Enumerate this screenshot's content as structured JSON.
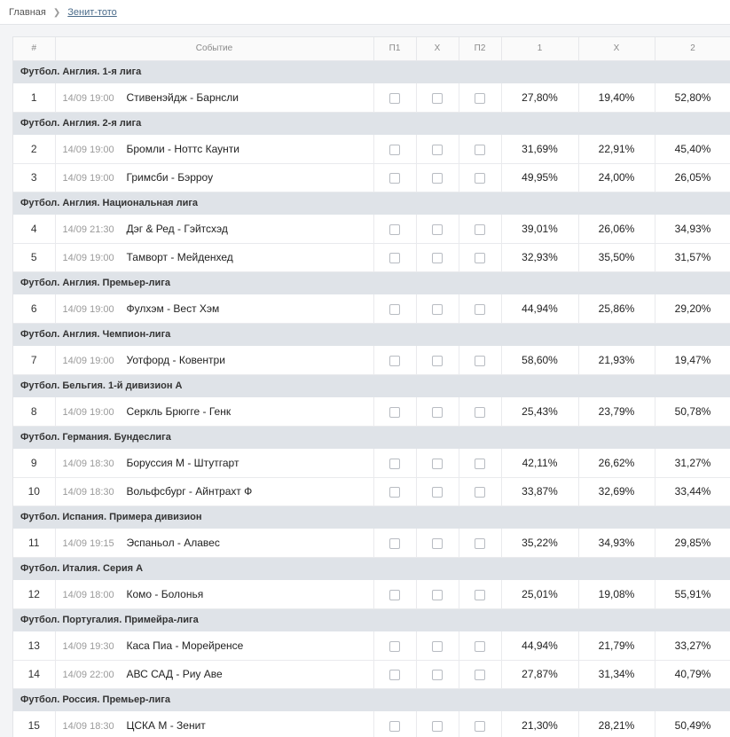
{
  "breadcrumb": {
    "home": "Главная",
    "current": "Зенит-тото"
  },
  "table": {
    "headers": [
      "#",
      "Событие",
      "П1",
      "Х",
      "П2",
      "1",
      "Х",
      "2"
    ],
    "rows": [
      {
        "kind": "group",
        "title": "Футбол. Англия. 1-я лига"
      },
      {
        "kind": "match",
        "num": "1",
        "time": "14/09 19:00",
        "match": "Стивенэйдж - Барнсли",
        "p1": "27,80%",
        "x": "19,40%",
        "p2": "52,80%"
      },
      {
        "kind": "group",
        "title": "Футбол. Англия. 2-я лига"
      },
      {
        "kind": "match",
        "num": "2",
        "time": "14/09 19:00",
        "match": "Бромли - Ноттс Каунти",
        "p1": "31,69%",
        "x": "22,91%",
        "p2": "45,40%"
      },
      {
        "kind": "match",
        "num": "3",
        "time": "14/09 19:00",
        "match": "Гримсби - Бэрроу",
        "p1": "49,95%",
        "x": "24,00%",
        "p2": "26,05%"
      },
      {
        "kind": "group",
        "title": "Футбол. Англия. Национальная лига"
      },
      {
        "kind": "match",
        "num": "4",
        "time": "14/09 21:30",
        "match": "Дэг & Ред - Гэйтсхэд",
        "p1": "39,01%",
        "x": "26,06%",
        "p2": "34,93%"
      },
      {
        "kind": "match",
        "num": "5",
        "time": "14/09 19:00",
        "match": "Тамворт - Мейденхед",
        "p1": "32,93%",
        "x": "35,50%",
        "p2": "31,57%"
      },
      {
        "kind": "group",
        "title": "Футбол. Англия. Премьер-лига"
      },
      {
        "kind": "match",
        "num": "6",
        "time": "14/09 19:00",
        "match": "Фулхэм - Вест Хэм",
        "p1": "44,94%",
        "x": "25,86%",
        "p2": "29,20%"
      },
      {
        "kind": "group",
        "title": "Футбол. Англия. Чемпион-лига"
      },
      {
        "kind": "match",
        "num": "7",
        "time": "14/09 19:00",
        "match": "Уотфорд - Ковентри",
        "p1": "58,60%",
        "x": "21,93%",
        "p2": "19,47%"
      },
      {
        "kind": "group",
        "title": "Футбол. Бельгия. 1-й дивизион А"
      },
      {
        "kind": "match",
        "num": "8",
        "time": "14/09 19:00",
        "match": "Серкль Брюгге - Генк",
        "p1": "25,43%",
        "x": "23,79%",
        "p2": "50,78%"
      },
      {
        "kind": "group",
        "title": "Футбол. Германия. Бундеслига"
      },
      {
        "kind": "match",
        "num": "9",
        "time": "14/09 18:30",
        "match": "Боруссия М - Штутгарт",
        "p1": "42,11%",
        "x": "26,62%",
        "p2": "31,27%"
      },
      {
        "kind": "match",
        "num": "10",
        "time": "14/09 18:30",
        "match": "Вольфсбург - Айнтрахт Ф",
        "p1": "33,87%",
        "x": "32,69%",
        "p2": "33,44%"
      },
      {
        "kind": "group",
        "title": "Футбол. Испания. Примера дивизион"
      },
      {
        "kind": "match",
        "num": "11",
        "time": "14/09 19:15",
        "match": "Эспаньол - Алавес",
        "p1": "35,22%",
        "x": "34,93%",
        "p2": "29,85%"
      },
      {
        "kind": "group",
        "title": "Футбол. Италия. Серия А"
      },
      {
        "kind": "match",
        "num": "12",
        "time": "14/09 18:00",
        "match": "Комо - Болонья",
        "p1": "25,01%",
        "x": "19,08%",
        "p2": "55,91%"
      },
      {
        "kind": "group",
        "title": "Футбол. Португалия. Примейра-лига"
      },
      {
        "kind": "match",
        "num": "13",
        "time": "14/09 19:30",
        "match": "Каса Пиа - Морейренсе",
        "p1": "44,94%",
        "x": "21,79%",
        "p2": "33,27%"
      },
      {
        "kind": "match",
        "num": "14",
        "time": "14/09 22:00",
        "match": "АВС САД - Риу Аве",
        "p1": "27,87%",
        "x": "31,34%",
        "p2": "40,79%"
      },
      {
        "kind": "group",
        "title": "Футбол. Россия. Премьер-лига"
      },
      {
        "kind": "match",
        "num": "15",
        "time": "14/09 18:30",
        "match": "ЦСКА М - Зенит",
        "p1": "21,30%",
        "x": "28,21%",
        "p2": "50,49%"
      }
    ]
  }
}
